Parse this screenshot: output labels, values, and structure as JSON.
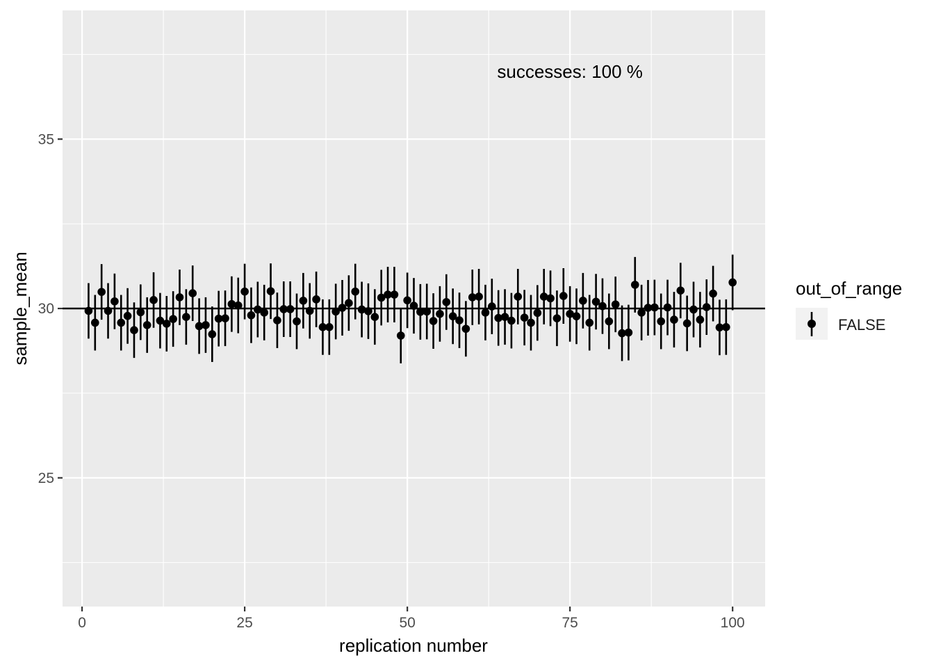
{
  "chart_data": {
    "type": "scatter",
    "xlabel": "replication number",
    "ylabel": "sample_mean",
    "xlim": [
      -3,
      105
    ],
    "ylim": [
      21.2,
      38.8
    ],
    "x_ticks": [
      0,
      25,
      50,
      75,
      100
    ],
    "y_ticks": [
      25,
      30,
      35
    ],
    "reference_line": 30,
    "annotation": {
      "text": "successes: 100 %",
      "x": 75,
      "y": 37
    },
    "legend": {
      "title": "out_of_range",
      "entries": [
        "FALSE"
      ],
      "placement": "right"
    },
    "grid": true,
    "colors": {
      "panel": "#ebebeb",
      "grid": "#ffffff",
      "points": "#000000"
    },
    "error_half_width": 0.82,
    "series": [
      {
        "x": [
          1,
          2,
          3,
          4,
          5,
          6,
          7,
          8,
          9,
          10,
          11,
          12,
          13,
          14,
          15,
          16,
          17,
          18,
          19,
          20,
          21,
          22,
          23,
          24,
          25,
          26,
          27,
          28,
          29,
          30,
          31,
          32,
          33,
          34,
          35,
          36,
          37,
          38,
          39,
          40,
          41,
          42,
          43,
          44,
          45,
          46,
          47,
          48,
          49,
          50,
          51,
          52,
          53,
          54,
          55,
          56,
          57,
          58,
          59,
          60,
          61,
          62,
          63,
          64,
          65,
          66,
          67,
          68,
          69,
          70,
          71,
          72,
          73,
          74,
          75,
          76,
          77,
          78,
          79,
          80,
          81,
          82,
          83,
          84,
          85,
          86,
          87,
          88,
          89,
          90,
          91,
          92,
          93,
          94,
          95,
          96,
          97,
          98,
          99,
          100
        ],
        "y": [
          29.93,
          29.58,
          30.49,
          29.93,
          30.21,
          29.58,
          29.78,
          29.36,
          29.89,
          29.51,
          30.25,
          29.64,
          29.55,
          29.69,
          30.33,
          29.75,
          30.45,
          29.48,
          29.51,
          29.24,
          29.7,
          29.71,
          30.13,
          30.09,
          30.5,
          29.8,
          29.97,
          29.88,
          30.51,
          29.65,
          29.98,
          29.98,
          29.62,
          30.23,
          29.93,
          30.27,
          29.45,
          29.45,
          29.91,
          30.02,
          30.16,
          30.5,
          29.97,
          29.92,
          29.75,
          30.32,
          30.41,
          30.41,
          29.2,
          30.24,
          30.08,
          29.9,
          29.91,
          29.63,
          29.84,
          30.19,
          29.77,
          29.65,
          29.4,
          30.33,
          30.35,
          29.88,
          30.06,
          29.72,
          29.75,
          29.64,
          30.35,
          29.73,
          29.58,
          29.87,
          30.35,
          30.3,
          29.71,
          30.37,
          29.84,
          29.77,
          30.23,
          29.58,
          30.2,
          30.07,
          29.62,
          30.12,
          29.27,
          29.29,
          30.7,
          29.88,
          30.02,
          30.03,
          29.62,
          30.03,
          29.67,
          30.53,
          29.56,
          29.97,
          29.67,
          30.04,
          30.44,
          29.44,
          29.45,
          30.77
        ]
      }
    ]
  }
}
